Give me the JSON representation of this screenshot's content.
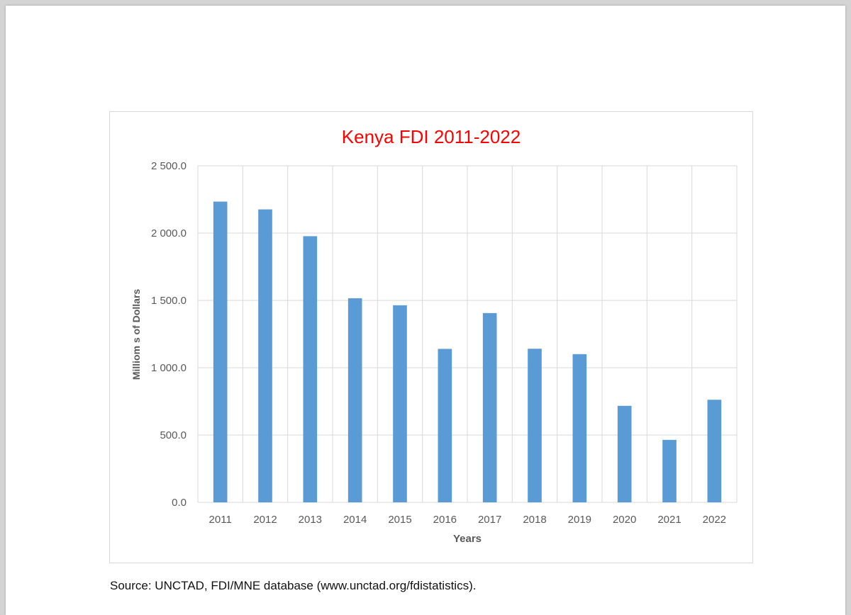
{
  "chart_data": {
    "type": "bar",
    "title": "Kenya FDI 2011-2022",
    "xlabel": "Years",
    "ylabel": "Milliom s of Dollars",
    "categories": [
      "2011",
      "2012",
      "2013",
      "2014",
      "2015",
      "2016",
      "2017",
      "2018",
      "2019",
      "2020",
      "2021",
      "2022"
    ],
    "values": [
      2234,
      2176,
      1977,
      1516,
      1464,
      1140,
      1406,
      1141,
      1101,
      717,
      464,
      762
    ],
    "ylim": [
      0,
      2500
    ],
    "yticks": [
      0,
      500,
      1000,
      1500,
      2000,
      2500
    ],
    "ytick_labels": [
      "0.0",
      "500.0",
      "1 000.0",
      "1 500.0",
      "2 000.0",
      "2 500.0"
    ],
    "grid": true,
    "legend": "none",
    "colors": {
      "bar": "#5b9bd5",
      "title": "#ff0000",
      "grid": "#d9d9d9",
      "axis_text": "#595959"
    }
  },
  "source_note": "Source: UNCTAD, FDI/MNE database (www.unctad.org/fdistatistics)."
}
